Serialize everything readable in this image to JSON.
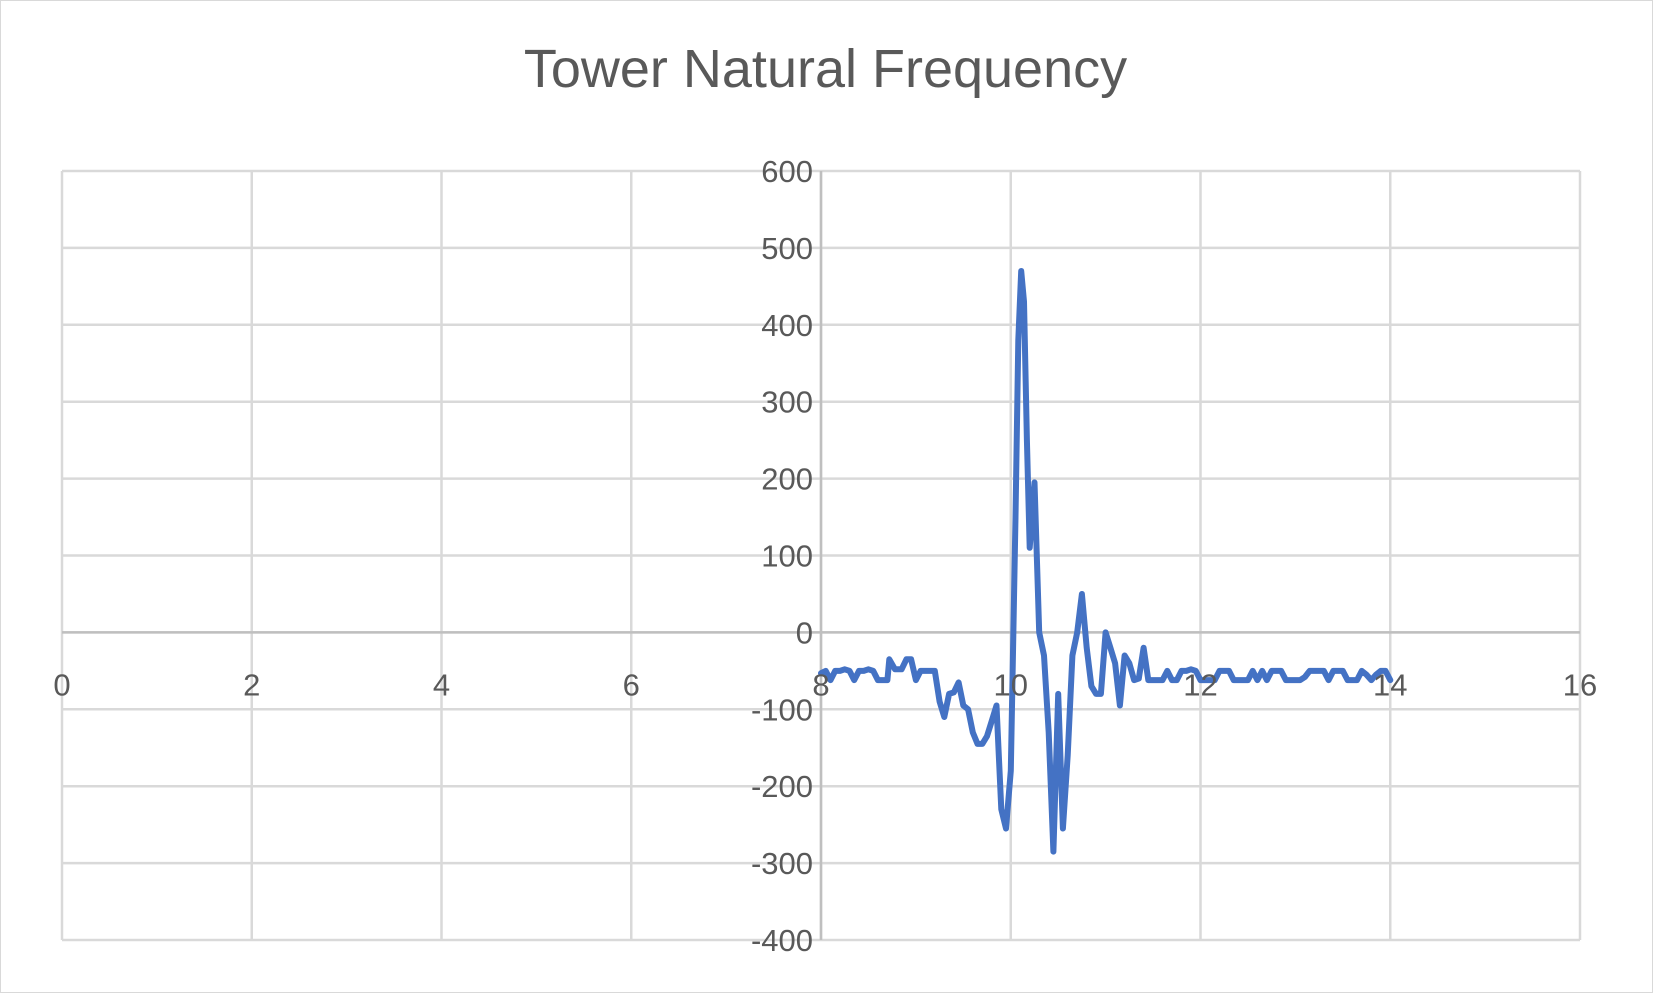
{
  "chart_data": {
    "type": "line",
    "title": "Tower Natural Frequency",
    "xlim": [
      0,
      16
    ],
    "ylim": [
      -400,
      600
    ],
    "x_ticks": [
      0,
      2,
      4,
      6,
      8,
      10,
      12,
      14,
      16
    ],
    "y_ticks": [
      600,
      500,
      400,
      300,
      200,
      100,
      0,
      -100,
      -200,
      -300,
      -400
    ],
    "grid": true,
    "legend": "none",
    "series": [
      {
        "color": "#4472c4",
        "points": [
          [
            8.0,
            -53
          ],
          [
            8.05,
            -50
          ],
          [
            8.1,
            -62
          ],
          [
            8.15,
            -50
          ],
          [
            8.2,
            -50
          ],
          [
            8.25,
            -48
          ],
          [
            8.3,
            -50
          ],
          [
            8.35,
            -62
          ],
          [
            8.4,
            -50
          ],
          [
            8.45,
            -50
          ],
          [
            8.5,
            -48
          ],
          [
            8.55,
            -50
          ],
          [
            8.6,
            -62
          ],
          [
            8.65,
            -62
          ],
          [
            8.7,
            -62
          ],
          [
            8.72,
            -35
          ],
          [
            8.78,
            -48
          ],
          [
            8.85,
            -48
          ],
          [
            8.9,
            -35
          ],
          [
            8.95,
            -35
          ],
          [
            9.0,
            -62
          ],
          [
            9.05,
            -50
          ],
          [
            9.1,
            -50
          ],
          [
            9.15,
            -50
          ],
          [
            9.2,
            -50
          ],
          [
            9.25,
            -90
          ],
          [
            9.3,
            -110
          ],
          [
            9.35,
            -80
          ],
          [
            9.4,
            -78
          ],
          [
            9.45,
            -65
          ],
          [
            9.5,
            -95
          ],
          [
            9.55,
            -100
          ],
          [
            9.6,
            -130
          ],
          [
            9.65,
            -145
          ],
          [
            9.7,
            -145
          ],
          [
            9.75,
            -135
          ],
          [
            9.8,
            -115
          ],
          [
            9.85,
            -95
          ],
          [
            9.9,
            -230
          ],
          [
            9.95,
            -255
          ],
          [
            10.0,
            -180
          ],
          [
            10.05,
            150
          ],
          [
            10.08,
            380
          ],
          [
            10.11,
            470
          ],
          [
            10.14,
            430
          ],
          [
            10.17,
            250
          ],
          [
            10.2,
            110
          ],
          [
            10.25,
            195
          ],
          [
            10.3,
            0
          ],
          [
            10.35,
            -30
          ],
          [
            10.4,
            -130
          ],
          [
            10.45,
            -285
          ],
          [
            10.5,
            -80
          ],
          [
            10.55,
            -255
          ],
          [
            10.6,
            -160
          ],
          [
            10.65,
            -30
          ],
          [
            10.7,
            0
          ],
          [
            10.75,
            50
          ],
          [
            10.8,
            -20
          ],
          [
            10.85,
            -70
          ],
          [
            10.9,
            -80
          ],
          [
            10.95,
            -80
          ],
          [
            11.0,
            0
          ],
          [
            11.05,
            -20
          ],
          [
            11.1,
            -40
          ],
          [
            11.15,
            -95
          ],
          [
            11.2,
            -30
          ],
          [
            11.25,
            -40
          ],
          [
            11.3,
            -62
          ],
          [
            11.35,
            -60
          ],
          [
            11.4,
            -20
          ],
          [
            11.45,
            -62
          ],
          [
            11.5,
            -62
          ],
          [
            11.55,
            -62
          ],
          [
            11.6,
            -62
          ],
          [
            11.65,
            -50
          ],
          [
            11.7,
            -62
          ],
          [
            11.75,
            -62
          ],
          [
            11.8,
            -50
          ],
          [
            11.85,
            -50
          ],
          [
            11.9,
            -48
          ],
          [
            11.95,
            -50
          ],
          [
            12.0,
            -62
          ],
          [
            12.05,
            -62
          ],
          [
            12.1,
            -62
          ],
          [
            12.15,
            -62
          ],
          [
            12.2,
            -50
          ],
          [
            12.25,
            -50
          ],
          [
            12.3,
            -50
          ],
          [
            12.35,
            -62
          ],
          [
            12.4,
            -62
          ],
          [
            12.45,
            -62
          ],
          [
            12.5,
            -62
          ],
          [
            12.55,
            -50
          ],
          [
            12.6,
            -62
          ],
          [
            12.65,
            -50
          ],
          [
            12.7,
            -62
          ],
          [
            12.75,
            -50
          ],
          [
            12.8,
            -50
          ],
          [
            12.85,
            -50
          ],
          [
            12.9,
            -62
          ],
          [
            12.95,
            -62
          ],
          [
            13.0,
            -62
          ],
          [
            13.05,
            -62
          ],
          [
            13.1,
            -58
          ],
          [
            13.15,
            -50
          ],
          [
            13.2,
            -50
          ],
          [
            13.25,
            -50
          ],
          [
            13.3,
            -50
          ],
          [
            13.35,
            -62
          ],
          [
            13.4,
            -50
          ],
          [
            13.45,
            -50
          ],
          [
            13.5,
            -50
          ],
          [
            13.55,
            -62
          ],
          [
            13.6,
            -62
          ],
          [
            13.65,
            -62
          ],
          [
            13.7,
            -50
          ],
          [
            13.75,
            -55
          ],
          [
            13.8,
            -62
          ],
          [
            13.85,
            -55
          ],
          [
            13.9,
            -50
          ],
          [
            13.95,
            -50
          ],
          [
            14.0,
            -62
          ]
        ]
      }
    ]
  }
}
